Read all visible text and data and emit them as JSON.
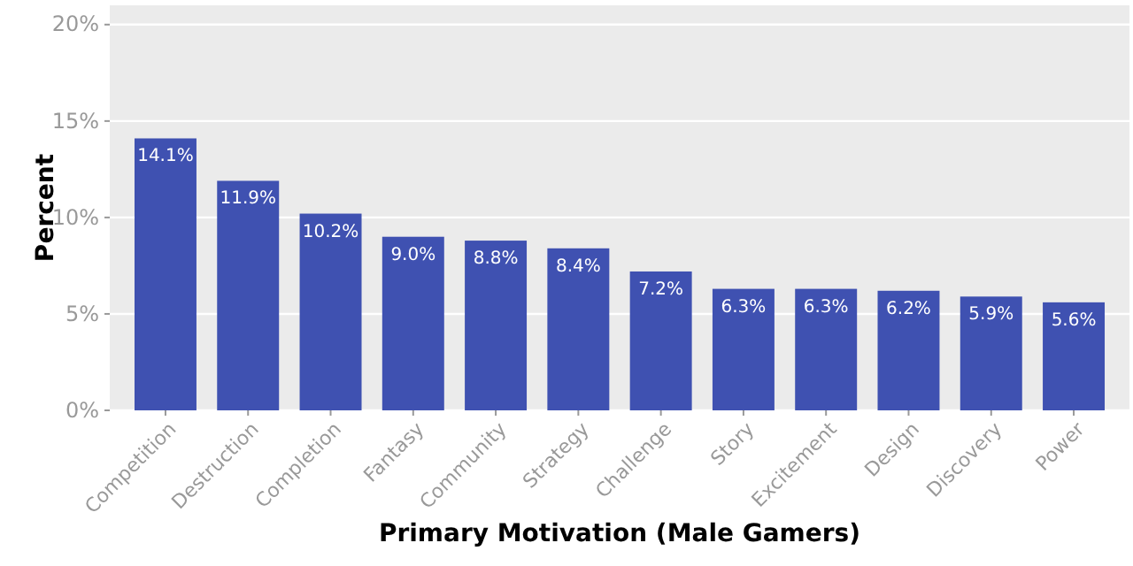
{
  "chart_data": {
    "type": "bar",
    "xlabel": "Primary Motivation (Male Gamers)",
    "ylabel": "Percent",
    "categories": [
      "Competition",
      "Destruction",
      "Completion",
      "Fantasy",
      "Community",
      "Strategy",
      "Challenge",
      "Story",
      "Excitement",
      "Design",
      "Discovery",
      "Power"
    ],
    "values": [
      14.1,
      11.9,
      10.2,
      9.0,
      8.8,
      8.4,
      7.2,
      6.3,
      6.3,
      6.2,
      5.9,
      5.6
    ],
    "value_labels": [
      "14.1%",
      "11.9%",
      "10.2%",
      "9.0%",
      "8.8%",
      "8.4%",
      "7.2%",
      "6.3%",
      "6.3%",
      "6.2%",
      "5.9%",
      "5.6%"
    ],
    "color": "#3f51b1",
    "ylim": [
      0,
      21
    ],
    "yticks": [
      {
        "value": 0,
        "label": "0%"
      },
      {
        "value": 5,
        "label": "5%"
      },
      {
        "value": 10,
        "label": "10%"
      },
      {
        "value": 15,
        "label": "15%"
      },
      {
        "value": 20,
        "label": "20%"
      }
    ],
    "grid": "y"
  }
}
